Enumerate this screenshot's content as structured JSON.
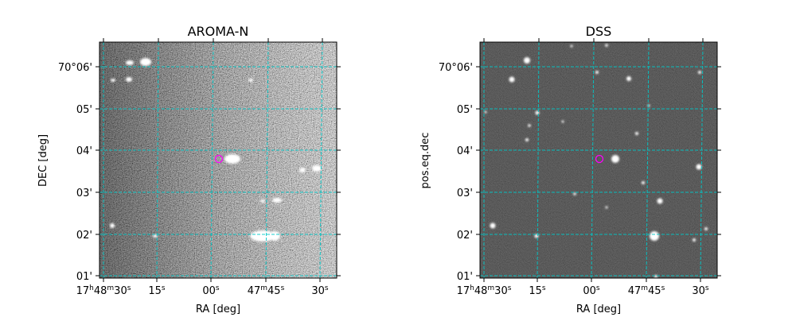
{
  "panels": [
    {
      "title": "AROMA-N",
      "xlabel": "RA [deg]",
      "ylabel": "DEC [deg]",
      "grid_color": "#00c8c8",
      "marker_color": "#ff00ff"
    },
    {
      "title": "DSS",
      "xlabel": "RA [deg]",
      "ylabel": "pos.eq.dec",
      "grid_color": "#00c8c8",
      "marker_color": "#ff00ff"
    }
  ],
  "dec_ticks": [
    "70°06'",
    "05'",
    "04'",
    "03'",
    "02'",
    "01'"
  ],
  "ra_ticks": [
    {
      "h": "17",
      "hu": "h",
      "m": "48",
      "mu": "m",
      "s": "30",
      "su": "s"
    },
    {
      "s": "15",
      "su": "s"
    },
    {
      "s": "00",
      "su": "s"
    },
    {
      "m": "47",
      "mu": "m",
      "s": "45",
      "su": "s"
    },
    {
      "s": "30",
      "su": "s"
    }
  ]
}
